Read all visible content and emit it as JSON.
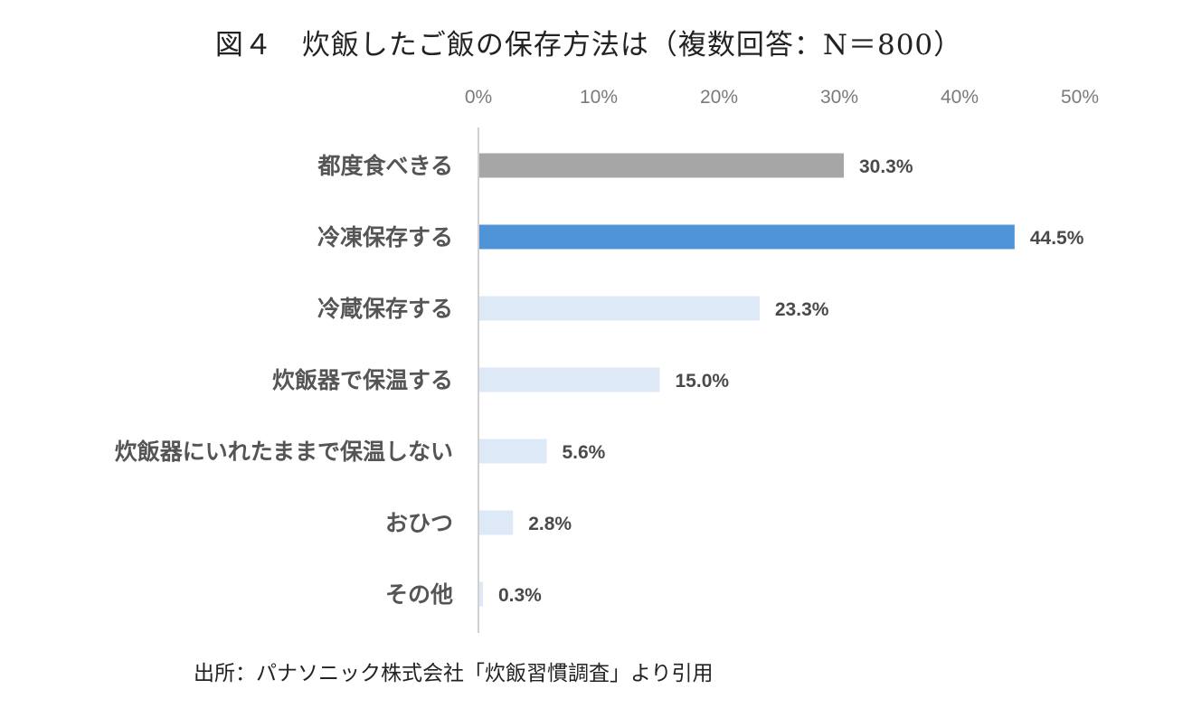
{
  "chart_data": {
    "type": "bar",
    "orientation": "horizontal",
    "title": "図４　炊飯したご飯の保存方法は（複数回答：N＝800）",
    "source": "出所：パナソニック株式会社「炊飯習慣調査」より引用",
    "categories": [
      "都度食べきる",
      "冷凍保存する",
      "冷蔵保存する",
      "炊飯器で保温する",
      "炊飯器にいれたままで保温しない",
      "おひつ",
      "その他"
    ],
    "values": [
      30.3,
      44.5,
      23.3,
      15.0,
      5.6,
      2.8,
      0.3
    ],
    "value_labels": [
      "30.3%",
      "44.5%",
      "23.3%",
      "15.0%",
      "5.6%",
      "2.8%",
      "0.3%"
    ],
    "bar_colors": [
      "#a6a6a6",
      "#4f94d8",
      "#dde9f6",
      "#dde9f6",
      "#dde9f6",
      "#dde9f6",
      "#dde9f6"
    ],
    "xlim": [
      0,
      50
    ],
    "ticks": [
      0,
      10,
      20,
      30,
      40,
      50
    ],
    "tick_labels": [
      "0%",
      "10%",
      "20%",
      "30%",
      "40%",
      "50%"
    ],
    "axis_position": "top",
    "grid": false,
    "legend": "none"
  }
}
